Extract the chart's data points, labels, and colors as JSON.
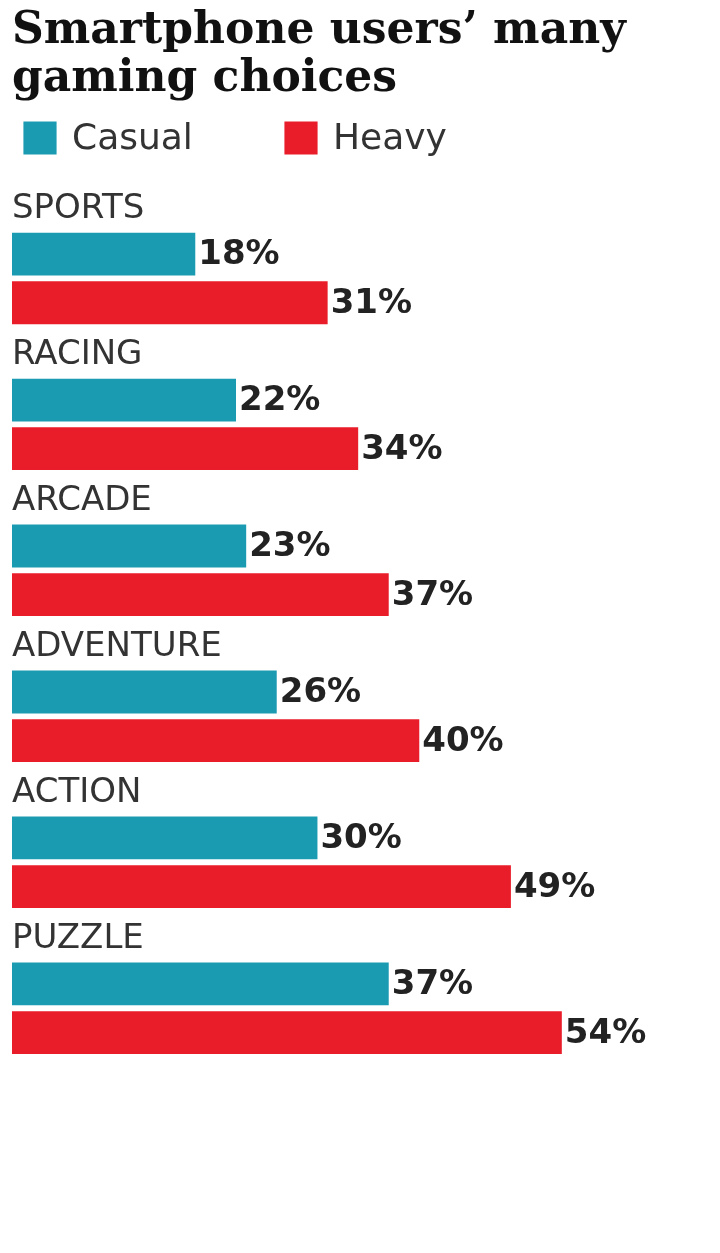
{
  "chart_data": {
    "type": "bar",
    "orientation": "horizontal",
    "title": "Smartphone users’ many gaming choices",
    "categories": [
      "SPORTS",
      "RACING",
      "ARCADE",
      "ADVENTURE",
      "ACTION",
      "PUZZLE"
    ],
    "series": [
      {
        "name": "Casual",
        "color": "#1b9bb1",
        "values": [
          18,
          22,
          23,
          26,
          30,
          37
        ],
        "value_labels": [
          "18%",
          "22%",
          "23%",
          "26%",
          "30%",
          "37%"
        ]
      },
      {
        "name": "Heavy",
        "color": "#e91d2a",
        "values": [
          31,
          34,
          37,
          40,
          49,
          54
        ],
        "value_labels": [
          "31%",
          "34%",
          "37%",
          "40%",
          "49%",
          "54%"
        ]
      }
    ],
    "legend": "top"
  }
}
